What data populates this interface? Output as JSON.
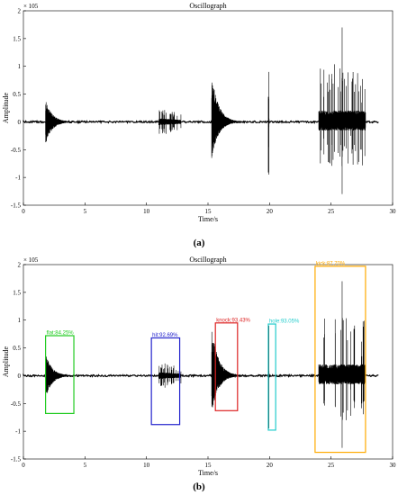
{
  "figure": {
    "caption_a": "(a)",
    "caption_b": "(b)"
  },
  "chart_data": [
    {
      "type": "line",
      "title": "Oscillograph",
      "xlabel": "Time/s",
      "ylabel": "Amplitude",
      "exponent_label": "× 10^5",
      "xlim": [
        0,
        30
      ],
      "ylim": [
        -1.5,
        2
      ],
      "xticks": [
        0,
        5,
        10,
        15,
        20,
        25,
        30
      ],
      "yticks": [
        2,
        1.5,
        1,
        0.5,
        0,
        -0.5,
        -1,
        -1.5
      ],
      "grid": false,
      "series_color": "#000000",
      "bursts": [
        {
          "t_start": 1.8,
          "t_end": 4.2,
          "peak_pos": 0.4,
          "peak_neg": -0.4,
          "type": "decay"
        },
        {
          "t_start": 11.0,
          "t_end": 12.8,
          "peak_pos": 0.25,
          "peak_neg": -0.25,
          "type": "spiky"
        },
        {
          "t_start": 15.3,
          "t_end": 17.8,
          "peak_pos": 0.85,
          "peak_neg": -0.65,
          "type": "decay"
        },
        {
          "t_start": 19.9,
          "t_end": 20.4,
          "peak_pos": 0.9,
          "peak_neg": -0.95,
          "type": "spike"
        },
        {
          "t_start": 24.0,
          "t_end": 27.8,
          "peak_pos": 1.7,
          "peak_neg": -1.3,
          "type": "multi"
        }
      ]
    },
    {
      "type": "line",
      "title": "Oscillograph",
      "xlabel": "Time/s",
      "ylabel": "Amplitude",
      "exponent_label": "× 10^5",
      "xlim": [
        0,
        30
      ],
      "ylim": [
        -1.5,
        2
      ],
      "xticks": [
        0,
        5,
        10,
        15,
        20,
        25,
        30
      ],
      "yticks": [
        2,
        1.5,
        1,
        0.5,
        0,
        -0.5,
        -1,
        -1.5
      ],
      "grid": false,
      "series_color": "#000000",
      "bursts": [
        {
          "t_start": 1.8,
          "t_end": 4.2,
          "peak_pos": 0.4,
          "peak_neg": -0.4,
          "type": "decay"
        },
        {
          "t_start": 11.0,
          "t_end": 12.8,
          "peak_pos": 0.25,
          "peak_neg": -0.25,
          "type": "spiky"
        },
        {
          "t_start": 15.3,
          "t_end": 17.8,
          "peak_pos": 0.85,
          "peak_neg": -0.65,
          "type": "decay"
        },
        {
          "t_start": 19.9,
          "t_end": 20.4,
          "peak_pos": 0.9,
          "peak_neg": -0.95,
          "type": "spike"
        },
        {
          "t_start": 24.0,
          "t_end": 27.8,
          "peak_pos": 1.7,
          "peak_neg": -1.3,
          "type": "multi"
        }
      ],
      "detections": [
        {
          "label": "flat:84.25%",
          "color": "#22cc22",
          "x0": 1.8,
          "x1": 4.1,
          "y0": -0.68,
          "y1": 0.72
        },
        {
          "label": "hit:92.69%",
          "color": "#2222cc",
          "x0": 10.4,
          "x1": 12.7,
          "y0": -0.88,
          "y1": 0.68
        },
        {
          "label": "knock:93.43%",
          "color": "#dd2222",
          "x0": 15.6,
          "x1": 17.4,
          "y0": -0.63,
          "y1": 0.95
        },
        {
          "label": "hole:93.05%",
          "color": "#22cccc",
          "x0": 19.9,
          "x1": 20.5,
          "y0": -0.98,
          "y1": 0.93
        },
        {
          "label": "kick:87.70%",
          "color": "#ffaa00",
          "x0": 23.7,
          "x1": 27.8,
          "y0": -1.38,
          "y1": 1.97
        }
      ]
    }
  ]
}
